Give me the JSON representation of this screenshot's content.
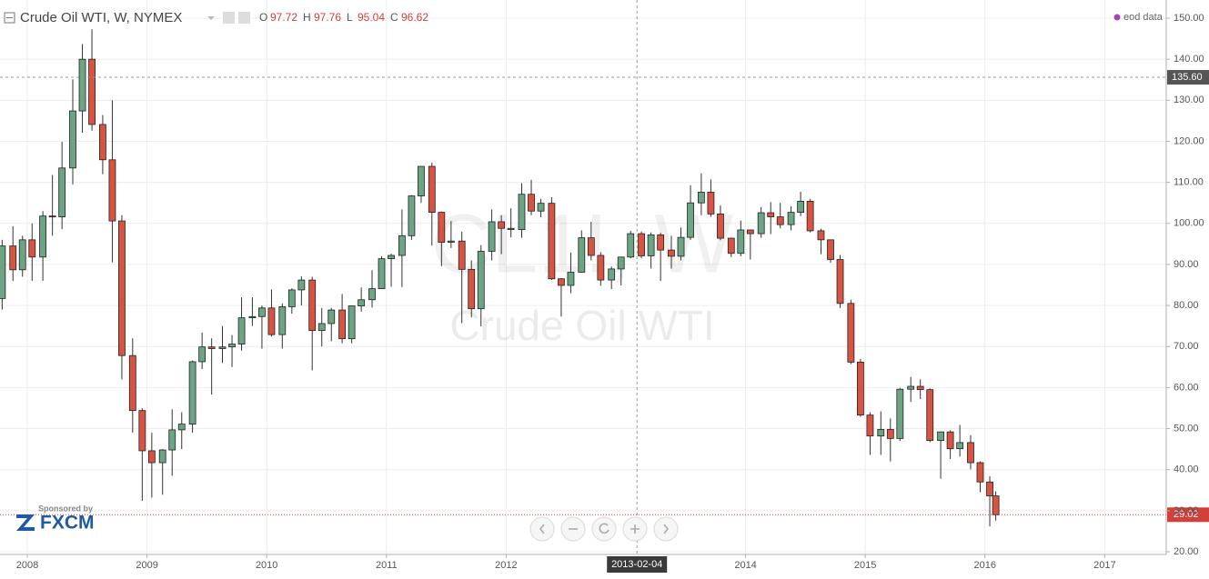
{
  "header": {
    "symbol": "Crude Oil WTI, W, NYMEX",
    "ohlc": [
      {
        "key": "O",
        "value": 97.72
      },
      {
        "key": "H",
        "value": 97.76
      },
      {
        "key": "L",
        "value": 95.04
      },
      {
        "key": "C",
        "value": 96.62
      }
    ],
    "source": "eod data"
  },
  "watermark": {
    "ticker": "CL1!, W",
    "name": "Crude Oil WTI"
  },
  "sponsor": {
    "caption": "Sponsored by",
    "brand": "FXCM"
  },
  "chart_data": {
    "type": "candlestick",
    "up_color": "#6ba583",
    "down_color": "#d75442",
    "grid": true,
    "xlim": [
      2007.772,
      2017.514
    ],
    "ylim": [
      19.34,
      154.43
    ],
    "xticks": [
      2008,
      2009,
      2010,
      2011,
      2012,
      2014,
      2015,
      2016,
      2017
    ],
    "yticks": [
      {
        "value": 20,
        "label": "20.00"
      },
      {
        "value": 30,
        "label": "30.00"
      },
      {
        "value": 40,
        "label": "40.00"
      },
      {
        "value": 50,
        "label": "50.00"
      },
      {
        "value": 60,
        "label": "60.00"
      },
      {
        "value": 70,
        "label": "70.00"
      },
      {
        "value": 80,
        "label": "80.00"
      },
      {
        "value": 90,
        "label": "90.00"
      },
      {
        "value": 100,
        "label": "100.00"
      },
      {
        "value": 110,
        "label": "110.00"
      },
      {
        "value": 120,
        "label": "120.00"
      },
      {
        "value": 130,
        "label": "130.00"
      },
      {
        "value": 140,
        "label": "140.00"
      },
      {
        "value": 150,
        "label": "150.00"
      }
    ],
    "crosshair": {
      "x": 2013.093,
      "x_label": "2013-02-04",
      "price": {
        "value": 135.6,
        "label": "135.60"
      }
    },
    "last_price": 29.02,
    "x": [
      2007.79,
      2007.88,
      2007.96,
      2008.04,
      2008.13,
      2008.21,
      2008.29,
      2008.38,
      2008.46,
      2008.54,
      2008.63,
      2008.71,
      2008.79,
      2008.88,
      2008.96,
      2009.04,
      2009.13,
      2009.21,
      2009.29,
      2009.38,
      2009.46,
      2009.54,
      2009.63,
      2009.71,
      2009.79,
      2009.88,
      2009.96,
      2010.04,
      2010.13,
      2010.21,
      2010.29,
      2010.38,
      2010.46,
      2010.54,
      2010.63,
      2010.71,
      2010.79,
      2010.88,
      2010.96,
      2011.04,
      2011.13,
      2011.21,
      2011.29,
      2011.38,
      2011.46,
      2011.54,
      2011.63,
      2011.71,
      2011.79,
      2011.88,
      2011.96,
      2012.04,
      2012.13,
      2012.21,
      2012.29,
      2012.38,
      2012.46,
      2012.54,
      2012.63,
      2012.71,
      2012.79,
      2012.88,
      2012.96,
      2013.04,
      2013.13,
      2013.21,
      2013.29,
      2013.38,
      2013.46,
      2013.54,
      2013.63,
      2013.71,
      2013.79,
      2013.88,
      2013.96,
      2014.04,
      2014.13,
      2014.21,
      2014.29,
      2014.38,
      2014.46,
      2014.54,
      2014.63,
      2014.71,
      2014.79,
      2014.88,
      2014.96,
      2015.04,
      2015.13,
      2015.21,
      2015.29,
      2015.38,
      2015.46,
      2015.54,
      2015.63,
      2015.71,
      2015.79,
      2015.88,
      2015.96,
      2016.04,
      2016.09
    ],
    "open": [
      81.7,
      94.5,
      88.7,
      96,
      91.8,
      101.8,
      101.6,
      113.5,
      127.4,
      140,
      124.1,
      115.5,
      100.6,
      67.8,
      54.4,
      44.6,
      41.7,
      44.8,
      49.7,
      51.1,
      66.3,
      69.9,
      69.5,
      69.9,
      70.6,
      77,
      77.3,
      79.4,
      72.9,
      79.7,
      83.8,
      86.2,
      73.9,
      75.6,
      78.9,
      71.9,
      79.9,
      81.4,
      84.1,
      91.4,
      92.2,
      97,
      106.7,
      113.9,
      102.7,
      95.4,
      95.7,
      88.8,
      79.2,
      93.2,
      100.4,
      98.8,
      98.5,
      107.1,
      103,
      104.9,
      86.5,
      84.9,
      88.1,
      96.5,
      92.2,
      86.2,
      88.9,
      91.8,
      97.5,
      92.1,
      97.2,
      93.5,
      92,
      96.6,
      105,
      107.6,
      102.3,
      96.4,
      92.7,
      98.4,
      97.5,
      102.6,
      101.6,
      99.7,
      102.7,
      105.4,
      98.2,
      96,
      91.2,
      80.5,
      66.2,
      53.3,
      48.2,
      49.8,
      47.6,
      59.6,
      60.3,
      59.5,
      47.1,
      49.2,
      45.1,
      46.6,
      41.7,
      37,
      33.6
    ],
    "high": [
      96,
      99.3,
      97,
      100,
      103,
      111.8,
      119.9,
      135.1,
      143.7,
      147.3,
      126.4,
      130,
      102,
      72,
      55,
      49,
      45,
      54.7,
      54,
      66.6,
      73.4,
      72,
      75,
      72.8,
      82,
      82,
      80,
      83.9,
      80.5,
      84.2,
      87.1,
      87,
      79.4,
      79.4,
      82.8,
      80,
      84.4,
      88.6,
      92,
      92.6,
      103.4,
      106.9,
      113.9,
      114.8,
      102.9,
      100.6,
      98,
      91,
      94.7,
      103.4,
      102,
      103.7,
      109.8,
      110.6,
      106,
      106.4,
      86.7,
      92.9,
      98.3,
      100.4,
      93,
      89.5,
      90.9,
      98.2,
      98,
      97.8,
      97.7,
      97,
      99,
      109.3,
      112.2,
      110.7,
      104.4,
      96.5,
      100.7,
      98.5,
      104,
      105.2,
      105,
      104.2,
      107.7,
      106,
      98.7,
      96,
      92.3,
      81.4,
      67,
      54,
      54.2,
      52.5,
      59.9,
      62.6,
      62,
      59.8,
      49.3,
      49.6,
      50.9,
      48.4,
      42,
      38.4,
      34.7
    ],
    "low": [
      79,
      86,
      87,
      86,
      86,
      97,
      98.6,
      109.5,
      122.1,
      122.6,
      112,
      90.5,
      62,
      49,
      32.4,
      33.2,
      33.9,
      38.5,
      45,
      49,
      64.5,
      58.3,
      66,
      65,
      69,
      75,
      69.5,
      72.4,
      69.5,
      78,
      80,
      64.2,
      70,
      71.3,
      70.8,
      70.8,
      78.5,
      79.5,
      84,
      84.6,
      84.5,
      96,
      105,
      94.6,
      89.6,
      94,
      75.7,
      77.1,
      74.9,
      91,
      92.5,
      96.6,
      96.5,
      102,
      101.5,
      86.2,
      77.3,
      83,
      88,
      91,
      84.8,
      84,
      84.9,
      91.5,
      91.5,
      89,
      86,
      89,
      91,
      96,
      102,
      101.6,
      95.9,
      91.8,
      92,
      91.2,
      96.5,
      97.4,
      98.8,
      98.3,
      101.8,
      97.8,
      92.5,
      90.4,
      79.4,
      65.7,
      52.9,
      43.6,
      43.6,
      42,
      47,
      56.5,
      57.2,
      46.7,
      37.8,
      42.6,
      43.2,
      40.1,
      34.5,
      26.2,
      27.6
    ],
    "close": [
      94.5,
      88.7,
      96,
      91.8,
      101.8,
      101.6,
      113.5,
      127.4,
      140,
      124.1,
      115.5,
      100.6,
      67.8,
      54.4,
      44.6,
      41.7,
      44.8,
      49.7,
      51.1,
      66.3,
      69.9,
      69.5,
      69.9,
      70.6,
      77,
      77.3,
      79.4,
      72.9,
      79.7,
      83.8,
      86.2,
      73.9,
      75.6,
      78.9,
      71.9,
      79.9,
      81.4,
      84.1,
      91.4,
      92.2,
      97,
      106.7,
      113.9,
      102.7,
      95.4,
      95.7,
      88.8,
      79.2,
      93.2,
      100.4,
      98.8,
      98.5,
      107.1,
      103,
      104.9,
      86.5,
      84.9,
      88.1,
      96.5,
      92.2,
      86.2,
      88.9,
      91.8,
      97.5,
      92.1,
      97.2,
      93.5,
      92,
      96.6,
      105,
      107.6,
      102.3,
      96.4,
      92.7,
      98.4,
      97.5,
      102.6,
      101.6,
      99.7,
      102.7,
      105.4,
      98.2,
      96,
      91.2,
      80.5,
      66.2,
      53.3,
      48.2,
      49.8,
      47.6,
      59.6,
      60.3,
      59.5,
      47.1,
      49.2,
      45.1,
      46.6,
      41.7,
      37,
      33.6,
      29.02
    ]
  }
}
